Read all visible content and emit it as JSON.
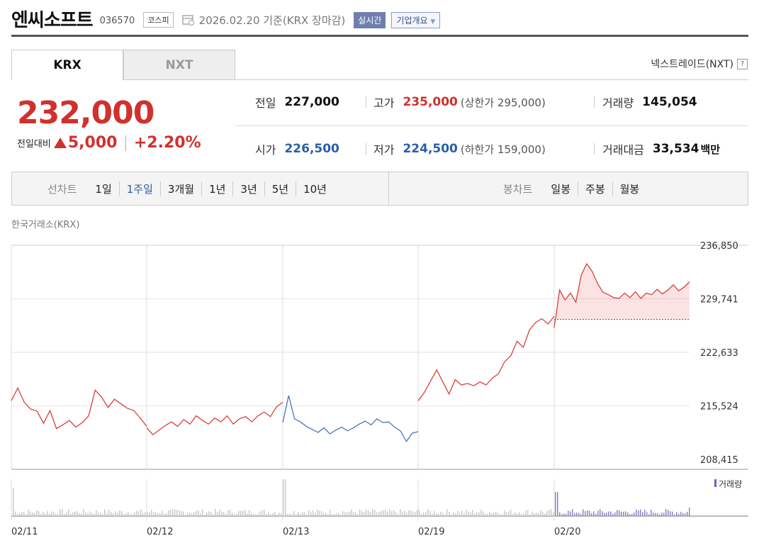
{
  "header": {
    "title": "엔씨소프트",
    "code": "036570",
    "market": "코스피",
    "date": "2026.02.20 기준(KRX 장마감)",
    "live_label": "실시간",
    "overview_label": "기업개요"
  },
  "tabs": [
    {
      "label": "KRX",
      "active": true
    },
    {
      "label": "NXT",
      "active": false
    }
  ],
  "nxt_link": "넥스트레이드(NXT)",
  "price": {
    "current": "232,000",
    "change_label": "전일대비",
    "change": "5,000",
    "change_pct": "+2.20%"
  },
  "stats": {
    "prev_close": {
      "label": "전일",
      "value": "227,000"
    },
    "high": {
      "label": "고가",
      "value": "235,000",
      "sub": "(상한가 295,000)"
    },
    "volume": {
      "label": "거래량",
      "value": "145,054"
    },
    "open": {
      "label": "시가",
      "value": "226,500"
    },
    "low": {
      "label": "저가",
      "value": "224,500",
      "sub": "(하한가 159,000)"
    },
    "amount": {
      "label": "거래대금",
      "value": "33,534",
      "unit": "백만"
    }
  },
  "period": {
    "line_label": "선차트",
    "line_items": [
      "1일",
      "1주일",
      "3개월",
      "1년",
      "3년",
      "5년",
      "10년"
    ],
    "line_active": "1주일",
    "candle_label": "봉차트",
    "candle_items": [
      "일봉",
      "주봉",
      "월봉"
    ]
  },
  "exchange_label": "한국거래소(KRX)",
  "chart_data": {
    "type": "line",
    "y_ticks": [
      "236,850",
      "229,741",
      "222,633",
      "215,524",
      "208,415"
    ],
    "ylim": [
      208415,
      236850
    ],
    "x_labels": [
      "02/11",
      "02/12",
      "02/13",
      "02/19",
      "02/20"
    ],
    "prev_close": 227000,
    "series": [
      {
        "day": "02/11",
        "color": "#d9403a",
        "values": [
          216200,
          217900,
          216000,
          215100,
          214800,
          213200,
          214900,
          212500,
          213000,
          213600,
          212700,
          213300,
          214200,
          217600,
          216700,
          215300,
          216400,
          215800,
          215200,
          214900,
          213900,
          212800
        ]
      },
      {
        "day": "02/12",
        "color": "#d9403a",
        "values": [
          212600,
          211700,
          212300,
          212900,
          213400,
          212800,
          213700,
          213100,
          214200,
          213600,
          213100,
          213900,
          213400,
          214200,
          213100,
          213800,
          214100,
          213400,
          214200,
          214700,
          214100,
          215400,
          216000
        ]
      },
      {
        "day": "02/13",
        "color": "#4a76bc",
        "values": [
          213300,
          216900,
          213800,
          213400,
          212800,
          212400,
          212000,
          212600,
          211800,
          212300,
          212700,
          212200,
          212600,
          213100,
          213500,
          213000,
          213800,
          213300,
          213400,
          212700,
          212200,
          210800,
          211900,
          212100
        ]
      },
      {
        "day": "02/19",
        "color": "#d9403a",
        "values": [
          216200,
          217300,
          218800,
          220300,
          218700,
          217100,
          219000,
          218300,
          218500,
          218200,
          218700,
          218300,
          219200,
          219800,
          221400,
          222200,
          224100,
          223300,
          225600,
          226600,
          227100,
          226400,
          227400
        ]
      },
      {
        "day": "02/20",
        "color": "#d9403a",
        "values": [
          225900,
          230900,
          229600,
          230500,
          229300,
          232900,
          234400,
          233400,
          231800,
          230600,
          230300,
          229900,
          229800,
          230500,
          229900,
          230700,
          229800,
          230500,
          230300,
          231000,
          230400,
          230900,
          231600,
          230800,
          231300,
          232000
        ]
      }
    ],
    "volume_label": "거래량"
  }
}
